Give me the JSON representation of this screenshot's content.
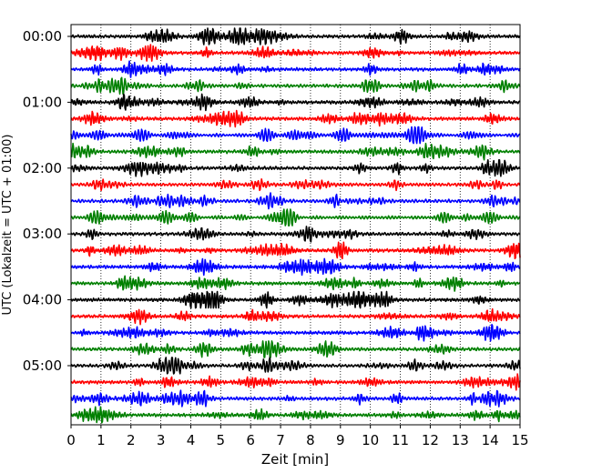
{
  "chart_data": {
    "type": "line",
    "title": "",
    "xlabel": "Zeit  [min]",
    "ylabel": "UTC (Lokalzeit = UTC + 01:00)",
    "xlim": [
      0,
      15
    ],
    "x_ticks": [
      "0",
      "1",
      "2",
      "3",
      "4",
      "5",
      "6",
      "7",
      "8",
      "9",
      "10",
      "11",
      "12",
      "13",
      "14",
      "15"
    ],
    "y_tick_labels": [
      "00:00",
      "01:00",
      "02:00",
      "03:00",
      "04:00",
      "05:00"
    ],
    "grid": "vertical dotted",
    "colors": [
      "#000000",
      "#ff0000",
      "#0000ff",
      "#008000"
    ],
    "row_minutes": 15,
    "rows": [
      "00:00",
      "00:15",
      "00:30",
      "00:45",
      "01:00",
      "01:15",
      "01:30",
      "01:45",
      "02:00",
      "02:15",
      "02:30",
      "02:45",
      "03:00",
      "03:15",
      "03:30",
      "03:45",
      "04:00",
      "04:15",
      "04:30",
      "04:45",
      "05:00",
      "05:15",
      "05:30",
      "05:45"
    ]
  }
}
